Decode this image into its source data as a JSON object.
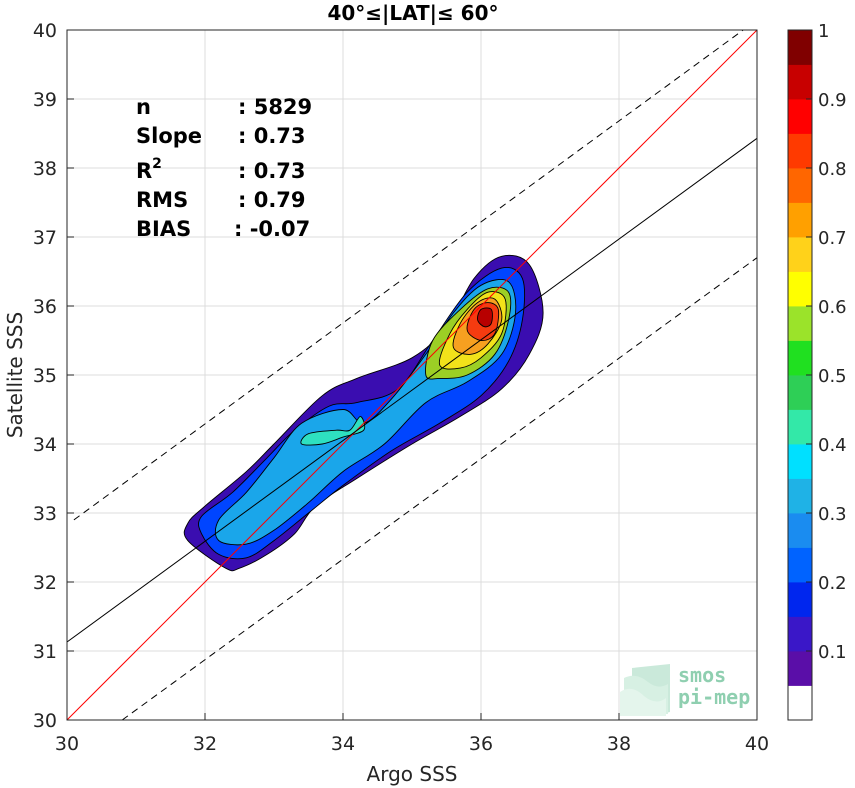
{
  "chart_data": {
    "type": "contour-density",
    "title": "40°≤|LAT|≤ 60°",
    "xlabel": "Argo SSS",
    "ylabel": "Satellite SSS",
    "xlim": [
      30,
      40
    ],
    "ylim": [
      30,
      40
    ],
    "x_ticks": [
      "30",
      "32",
      "34",
      "36",
      "38",
      "40"
    ],
    "y_ticks": [
      "30",
      "31",
      "32",
      "33",
      "34",
      "35",
      "36",
      "37",
      "38",
      "39",
      "40"
    ],
    "grid": true,
    "stats": [
      {
        "label": "n",
        "value": ": 5829"
      },
      {
        "label": "Slope",
        "value": ": 0.73"
      },
      {
        "label": "R",
        "sup": "2",
        "value": ": 0.73"
      },
      {
        "label": "RMS",
        "value": ": 0.79"
      },
      {
        "label": "BIAS",
        "value": ": -0.07"
      }
    ],
    "lines": [
      {
        "name": "one-to-one",
        "color": "#ff0000",
        "style": "solid",
        "points": [
          [
            30,
            30
          ],
          [
            40,
            40
          ]
        ]
      },
      {
        "name": "regression",
        "color": "#000000",
        "style": "solid",
        "points": [
          [
            30,
            31.13
          ],
          [
            40,
            38.43
          ]
        ]
      },
      {
        "name": "upper-bound",
        "color": "#000000",
        "style": "dashed",
        "points": [
          [
            30.1,
            32.9
          ],
          [
            39.8,
            40
          ]
        ]
      },
      {
        "name": "lower-bound",
        "color": "#000000",
        "style": "dashed",
        "points": [
          [
            30.8,
            30
          ],
          [
            40,
            36.7
          ]
        ]
      }
    ],
    "contour_levels": [
      {
        "level": 0.05,
        "color": "#3a0db0",
        "polygon": [
          [
            32.3,
            32.2
          ],
          [
            31.75,
            32.6
          ],
          [
            31.75,
            32.85
          ],
          [
            32.0,
            33.1
          ],
          [
            32.6,
            33.6
          ],
          [
            33.0,
            34.0
          ],
          [
            33.7,
            34.7
          ],
          [
            34.2,
            34.95
          ],
          [
            35.0,
            35.25
          ],
          [
            35.5,
            35.7
          ],
          [
            35.9,
            36.4
          ],
          [
            36.3,
            36.72
          ],
          [
            36.7,
            36.6
          ],
          [
            36.9,
            35.9
          ],
          [
            36.7,
            35.3
          ],
          [
            36.3,
            34.8
          ],
          [
            35.7,
            34.4
          ],
          [
            35.0,
            34.0
          ],
          [
            34.2,
            33.5
          ],
          [
            33.6,
            33.1
          ],
          [
            33.3,
            32.7
          ],
          [
            32.9,
            32.4
          ],
          [
            32.5,
            32.2
          ]
        ]
      },
      {
        "level": 0.15,
        "color": "#0045ff",
        "polygon": [
          [
            32.2,
            32.4
          ],
          [
            31.95,
            32.7
          ],
          [
            31.95,
            32.95
          ],
          [
            32.4,
            33.3
          ],
          [
            32.9,
            33.8
          ],
          [
            33.3,
            34.2
          ],
          [
            33.8,
            34.55
          ],
          [
            34.2,
            34.6
          ],
          [
            34.8,
            34.8
          ],
          [
            35.3,
            35.5
          ],
          [
            35.8,
            36.2
          ],
          [
            36.3,
            36.55
          ],
          [
            36.6,
            36.4
          ],
          [
            36.6,
            35.8
          ],
          [
            36.4,
            35.2
          ],
          [
            36.0,
            34.7
          ],
          [
            35.4,
            34.3
          ],
          [
            34.7,
            33.9
          ],
          [
            34.0,
            33.4
          ],
          [
            33.5,
            33.0
          ],
          [
            33.0,
            32.6
          ],
          [
            32.6,
            32.35
          ]
        ]
      },
      {
        "level": 0.25,
        "color": "#1aa6ea",
        "polygon": [
          [
            32.2,
            32.6
          ],
          [
            32.2,
            32.9
          ],
          [
            32.6,
            33.3
          ],
          [
            33.0,
            33.8
          ],
          [
            33.4,
            34.3
          ],
          [
            34.0,
            34.5
          ],
          [
            34.3,
            34.3
          ],
          [
            34.7,
            34.65
          ],
          [
            35.2,
            35.3
          ],
          [
            35.6,
            35.9
          ],
          [
            36.0,
            36.3
          ],
          [
            36.4,
            36.35
          ],
          [
            36.5,
            35.9
          ],
          [
            36.3,
            35.3
          ],
          [
            35.8,
            34.9
          ],
          [
            35.2,
            34.6
          ],
          [
            34.6,
            34.0
          ],
          [
            34.0,
            33.6
          ],
          [
            33.5,
            33.15
          ],
          [
            33.0,
            32.75
          ],
          [
            32.6,
            32.55
          ]
        ]
      },
      {
        "level": 0.35,
        "color": "#2ee0c0",
        "polygon": [
          [
            33.4,
            34.0
          ],
          [
            33.5,
            34.15
          ],
          [
            33.9,
            34.2
          ],
          [
            34.1,
            34.2
          ],
          [
            34.25,
            34.4
          ],
          [
            34.3,
            34.2
          ],
          [
            34.0,
            34.1
          ],
          [
            33.7,
            34.0
          ]
        ]
      },
      {
        "level": 0.45,
        "color": "#9ccf25",
        "polygon": [
          [
            35.2,
            35.0
          ],
          [
            35.3,
            35.5
          ],
          [
            35.7,
            35.95
          ],
          [
            36.1,
            36.25
          ],
          [
            36.4,
            36.2
          ],
          [
            36.4,
            35.8
          ],
          [
            36.2,
            35.3
          ],
          [
            35.8,
            35.0
          ],
          [
            35.4,
            34.95
          ]
        ]
      },
      {
        "level": 0.55,
        "color": "#f2e21a",
        "polygon": [
          [
            35.4,
            35.15
          ],
          [
            35.55,
            35.6
          ],
          [
            35.8,
            35.95
          ],
          [
            36.1,
            36.2
          ],
          [
            36.35,
            36.1
          ],
          [
            36.3,
            35.6
          ],
          [
            36.0,
            35.25
          ],
          [
            35.7,
            35.1
          ]
        ]
      },
      {
        "level": 0.65,
        "color": "#f7a020",
        "polygon": [
          [
            35.6,
            35.4
          ],
          [
            35.7,
            35.75
          ],
          [
            35.95,
            36.05
          ],
          [
            36.2,
            36.1
          ],
          [
            36.3,
            35.8
          ],
          [
            36.1,
            35.45
          ],
          [
            35.85,
            35.3
          ]
        ]
      },
      {
        "level": 0.8,
        "color": "#f53b10",
        "polygon": [
          [
            35.8,
            35.65
          ],
          [
            35.9,
            35.95
          ],
          [
            36.1,
            36.05
          ],
          [
            36.25,
            35.95
          ],
          [
            36.2,
            35.6
          ],
          [
            36.0,
            35.5
          ]
        ]
      },
      {
        "level": 0.95,
        "color": "#b80000",
        "polygon": [
          [
            35.95,
            35.8
          ],
          [
            36.0,
            35.95
          ],
          [
            36.15,
            35.95
          ],
          [
            36.15,
            35.75
          ],
          [
            36.05,
            35.7
          ]
        ]
      }
    ],
    "colorbar": {
      "ticks": [
        "0.1",
        "0.2",
        "0.3",
        "0.4",
        "0.5",
        "0.6",
        "0.7",
        "0.8",
        "0.9",
        "1"
      ],
      "colors": [
        "#ffffff",
        "#5a0ea8",
        "#3a17c8",
        "#0026ee",
        "#0063ff",
        "#1a8cf0",
        "#1fb2e6",
        "#00e0ff",
        "#33e8a8",
        "#2ecf56",
        "#20e020",
        "#9be32a",
        "#ffff00",
        "#ffd21a",
        "#ffa000",
        "#ff6600",
        "#ff3a00",
        "#ff0000",
        "#c80000",
        "#800000"
      ]
    }
  },
  "logo": {
    "line1": "smos",
    "line2": "pi-mep"
  }
}
